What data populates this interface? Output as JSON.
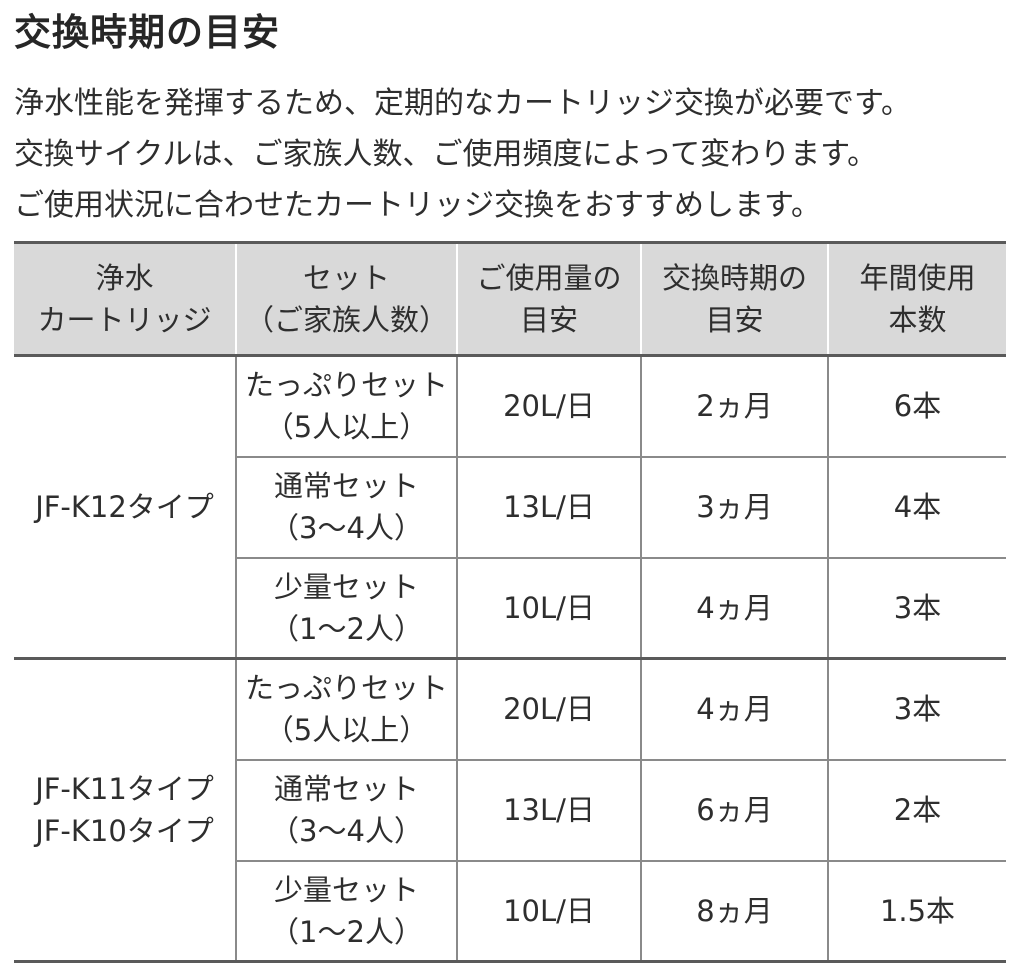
{
  "title": "交換時期の目安",
  "intro": [
    "浄水性能を発揮するため、定期的なカートリッジ交換が必要です。",
    "交換サイクルは、ご家族人数、ご使用頻度によって変わります。",
    "ご使用状況に合わせたカートリッジ交換をおすすめします。"
  ],
  "table": {
    "headers": [
      [
        "浄水",
        "カートリッジ"
      ],
      [
        "セット",
        "（ご家族人数）"
      ],
      [
        "ご使用量の",
        "目安"
      ],
      [
        "交換時期の",
        "目安"
      ],
      [
        "年間使用",
        "本数"
      ]
    ],
    "groups": [
      {
        "model": [
          "JF-K12タイプ"
        ],
        "rows": [
          {
            "set": [
              "たっぷりセット",
              "（5人以上）"
            ],
            "usage": "20L/日",
            "interval": "2ヵ月",
            "annual": "6本"
          },
          {
            "set": [
              "通常セット",
              "（3～4人）"
            ],
            "usage": "13L/日",
            "interval": "3ヵ月",
            "annual": "4本"
          },
          {
            "set": [
              "少量セット",
              "（1～2人）"
            ],
            "usage": "10L/日",
            "interval": "4ヵ月",
            "annual": "3本"
          }
        ]
      },
      {
        "model": [
          "JF-K11タイプ",
          "JF-K10タイプ"
        ],
        "rows": [
          {
            "set": [
              "たっぷりセット",
              "（5人以上）"
            ],
            "usage": "20L/日",
            "interval": "4ヵ月",
            "annual": "3本"
          },
          {
            "set": [
              "通常セット",
              "（3～4人）"
            ],
            "usage": "13L/日",
            "interval": "6ヵ月",
            "annual": "2本"
          },
          {
            "set": [
              "少量セット",
              "（1～2人）"
            ],
            "usage": "10L/日",
            "interval": "8ヵ月",
            "annual": "1.5本"
          }
        ]
      }
    ]
  }
}
